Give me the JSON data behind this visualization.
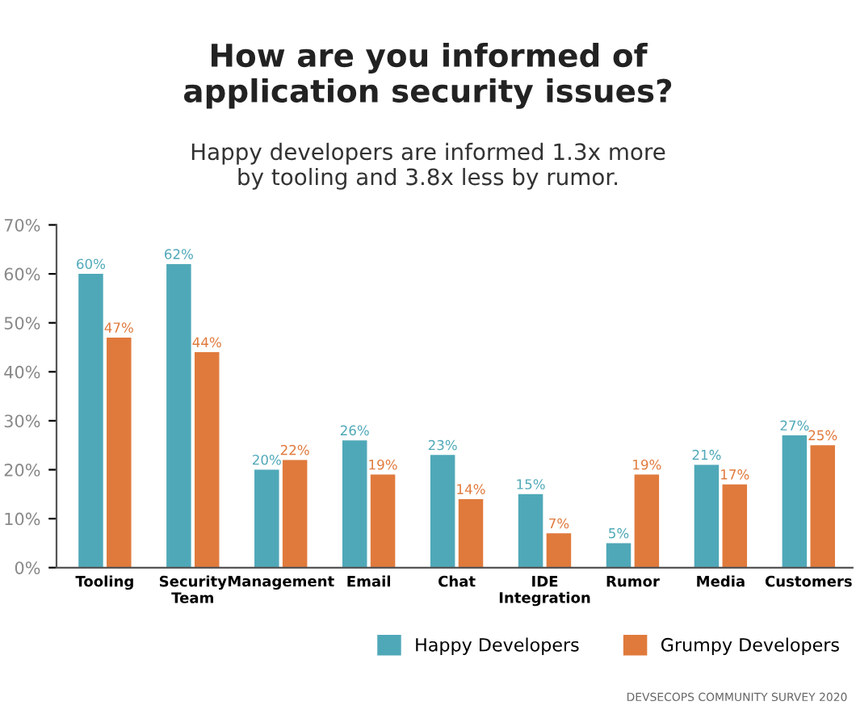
{
  "chart_data": {
    "type": "bar",
    "title": "How are you informed of\napplication security issues?",
    "subtitle": "Happy developers are informed 1.3x more\nby tooling and 3.8x less by rumor.",
    "categories": [
      "Tooling",
      "Security\nTeam",
      "Management",
      "Email",
      "Chat",
      "IDE\nIntegration",
      "Rumor",
      "Media",
      "Customers"
    ],
    "series": [
      {
        "name": "Happy Developers",
        "color": "#4fa8b8",
        "values": [
          60,
          62,
          20,
          26,
          23,
          15,
          5,
          21,
          27
        ],
        "value_labels": [
          "60%",
          "62%",
          "20%",
          "26%",
          "23%",
          "15%",
          "5%",
          "21%",
          "27%"
        ]
      },
      {
        "name": "Grumpy Developers",
        "color": "#e07a3c",
        "values": [
          47,
          44,
          22,
          19,
          14,
          7,
          19,
          17,
          25
        ],
        "value_labels": [
          "47%",
          "44%",
          "22%",
          "19%",
          "14%",
          "7%",
          "19%",
          "17%",
          "25%"
        ]
      }
    ],
    "ylim": [
      0,
      70
    ],
    "yticks": [
      {
        "value": 0,
        "label": "0%"
      },
      {
        "value": 10,
        "label": "10%"
      },
      {
        "value": 20,
        "label": "20%"
      },
      {
        "value": 30,
        "label": "30%"
      },
      {
        "value": 40,
        "label": "40%"
      },
      {
        "value": 50,
        "label": "50%"
      },
      {
        "value": 60,
        "label": "60%"
      },
      {
        "value": 70,
        "label": "70%"
      }
    ],
    "grid": false,
    "legend": "bottom right",
    "annotations": [
      "DEVSECOPS COMMUNITY SURVEY 2020"
    ]
  }
}
